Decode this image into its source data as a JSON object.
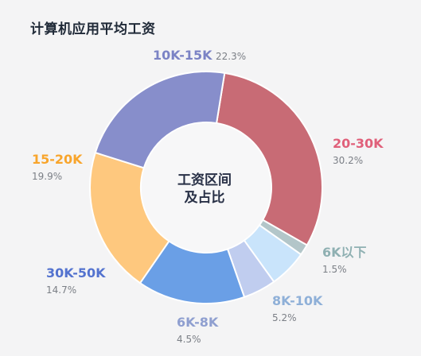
{
  "page": {
    "title": "计算机应用平均工资"
  },
  "center_label": {
    "line1": "工资区间",
    "line2": "及占比"
  },
  "chart_data": {
    "type": "pie",
    "title": "计算机应用平均工资",
    "center_label": "工资区间 及占比",
    "legend": "none",
    "slices": [
      {
        "label": "20-30K",
        "value": 30.2,
        "value_label": "30.2%",
        "color": "#c86b75",
        "label_color": "#e0607a"
      },
      {
        "label": "6K以下",
        "value": 1.5,
        "value_label": "1.5%",
        "color": "#b3c6c9",
        "label_color": "#8fb0b2"
      },
      {
        "label": "8K-10K",
        "value": 5.2,
        "value_label": "5.2%",
        "color": "#c9e4fb",
        "label_color": "#8fb0d8"
      },
      {
        "label": "6K-8K",
        "value": 4.5,
        "value_label": "4.5%",
        "color": "#c0cdef",
        "label_color": "#8f9fd0"
      },
      {
        "label": "30K-50K",
        "value": 14.7,
        "value_label": "14.7%",
        "color": "#6a9fe6",
        "label_color": "#5473cf"
      },
      {
        "label": "15-20K",
        "value": 19.9,
        "value_label": "19.9%",
        "color": "#fec87e",
        "label_color": "#f8a52c"
      },
      {
        "label": "10K-15K",
        "value": 22.3,
        "value_label": "22.3%",
        "color": "#878ecb",
        "label_color": "#7b83c5"
      }
    ]
  }
}
